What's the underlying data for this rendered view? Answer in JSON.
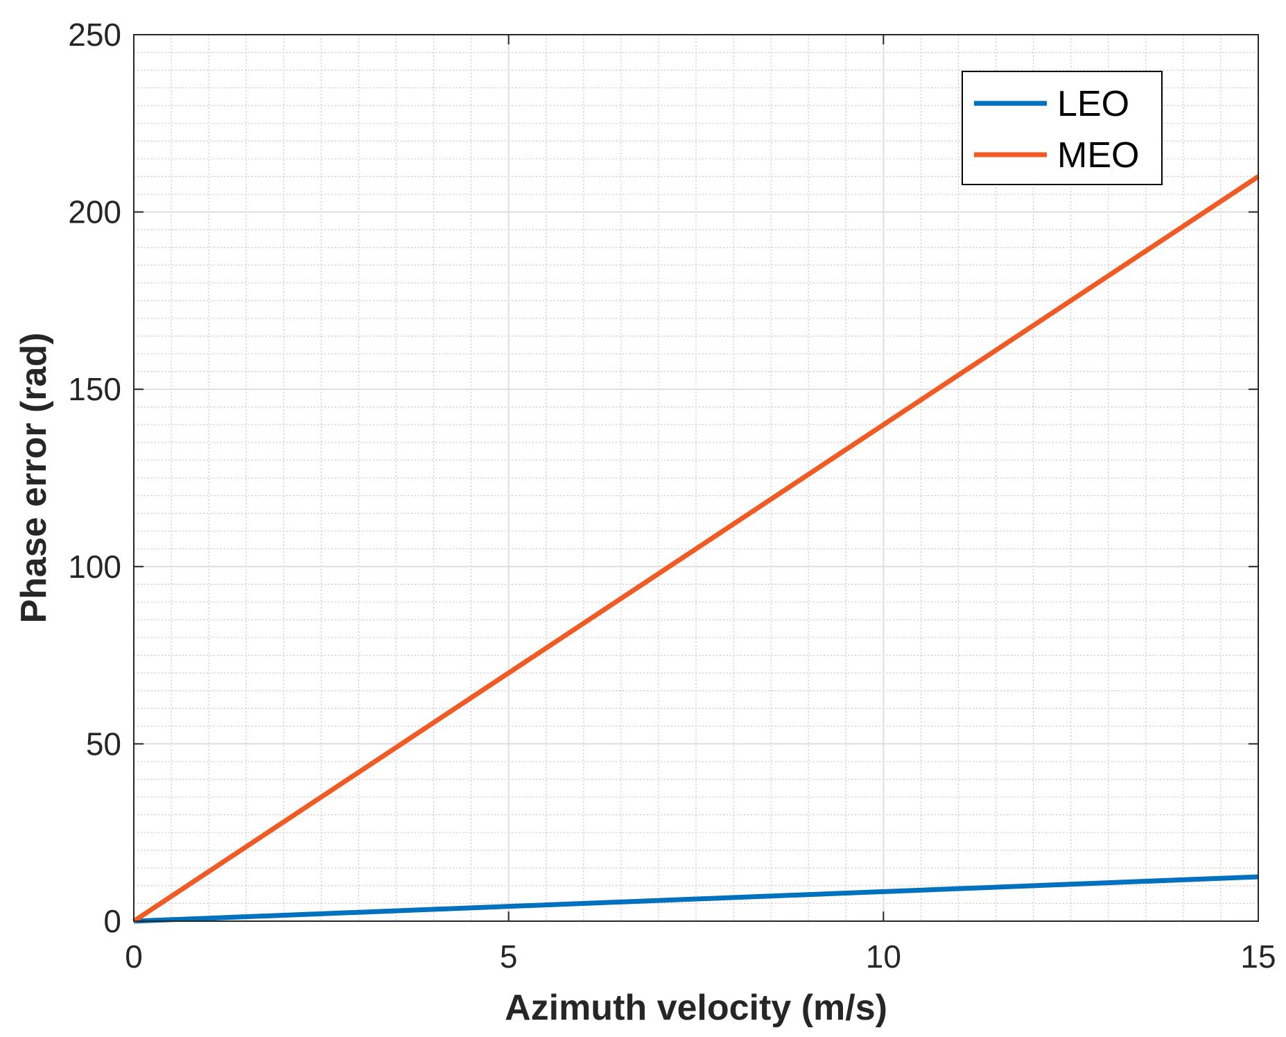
{
  "chart_data": {
    "type": "line",
    "title": "",
    "xlabel": "Azimuth velocity (m/s)",
    "ylabel": "Phase error (rad)",
    "xlim": [
      0,
      15
    ],
    "ylim": [
      0,
      250
    ],
    "xticks": [
      0,
      5,
      10,
      15
    ],
    "yticks": [
      0,
      50,
      100,
      150,
      200,
      250
    ],
    "x_minor_step": 0.5,
    "y_minor_step": 5,
    "grid": true,
    "minor_grid": true,
    "legend_position": "top-right",
    "series": [
      {
        "name": "LEO",
        "color": "#0072BD",
        "x": [
          0,
          15
        ],
        "y": [
          0,
          12.5
        ]
      },
      {
        "name": "MEO",
        "color": "#F15A22",
        "x": [
          0,
          15
        ],
        "y": [
          0,
          210
        ]
      }
    ]
  }
}
